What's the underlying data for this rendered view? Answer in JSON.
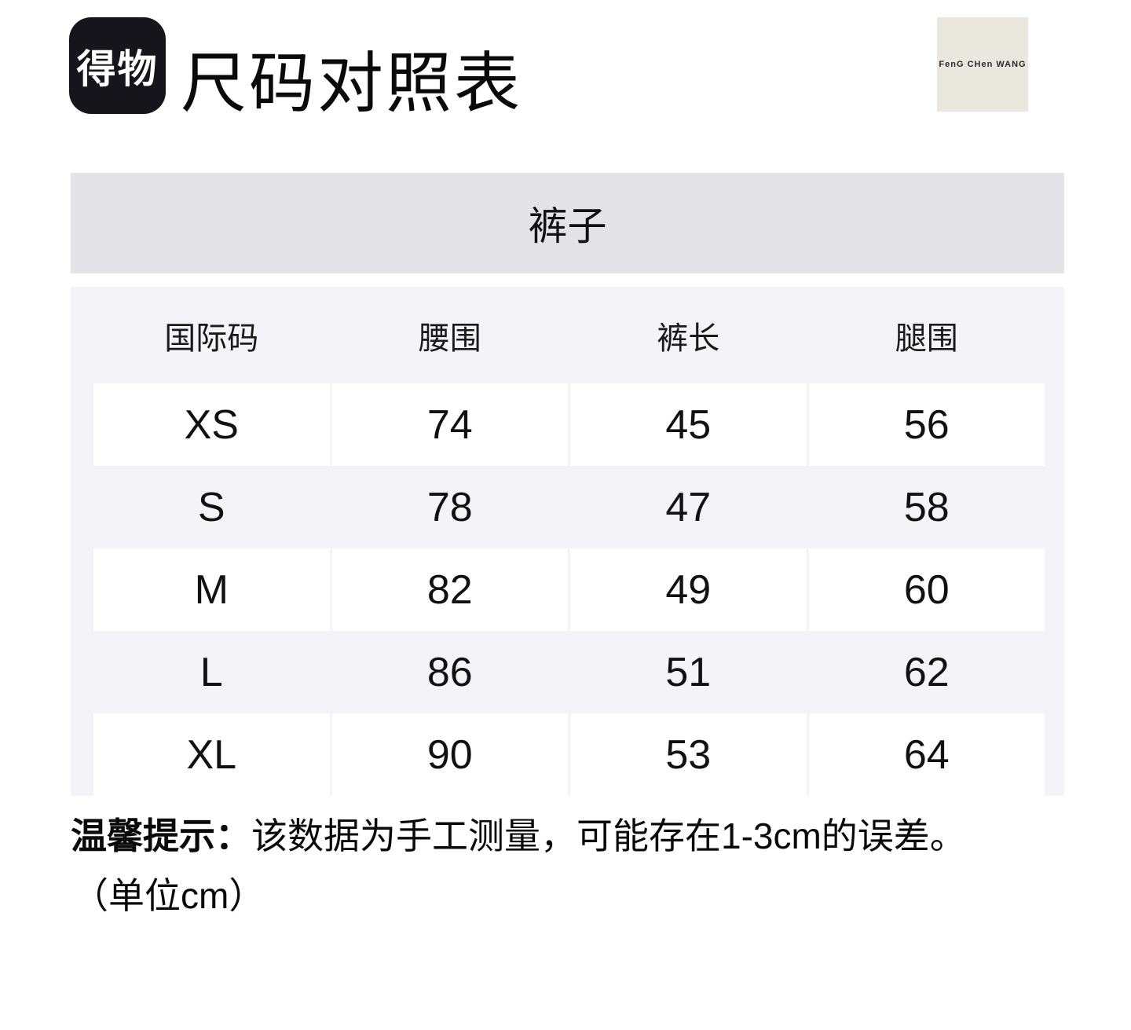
{
  "header": {
    "app_logo_text": "得物",
    "page_title": "尺码对照表",
    "brand_logo_text": "FenG CHen WANG"
  },
  "size_chart": {
    "category_title": "裤子",
    "columns": [
      "国际码",
      "腰围",
      "裤长",
      "腿围"
    ],
    "rows": [
      {
        "size": "XS",
        "values": [
          "74",
          "45",
          "56"
        ]
      },
      {
        "size": "S",
        "values": [
          "78",
          "47",
          "58"
        ]
      },
      {
        "size": "M",
        "values": [
          "82",
          "49",
          "60"
        ]
      },
      {
        "size": "L",
        "values": [
          "86",
          "51",
          "62"
        ]
      },
      {
        "size": "XL",
        "values": [
          "90",
          "53",
          "64"
        ]
      }
    ]
  },
  "footnote": {
    "label": "温馨提示：",
    "text": "该数据为手工测量，可能存在1-3cm的误差。",
    "unit_note": "（单位cm）"
  },
  "colors": {
    "logo_bg": "#15151b",
    "brand_badge_bg": "#eae7de",
    "category_bar_bg": "#e4e3e8",
    "table_bg": "#f4f3f8",
    "row_bg": "#ffffff"
  }
}
